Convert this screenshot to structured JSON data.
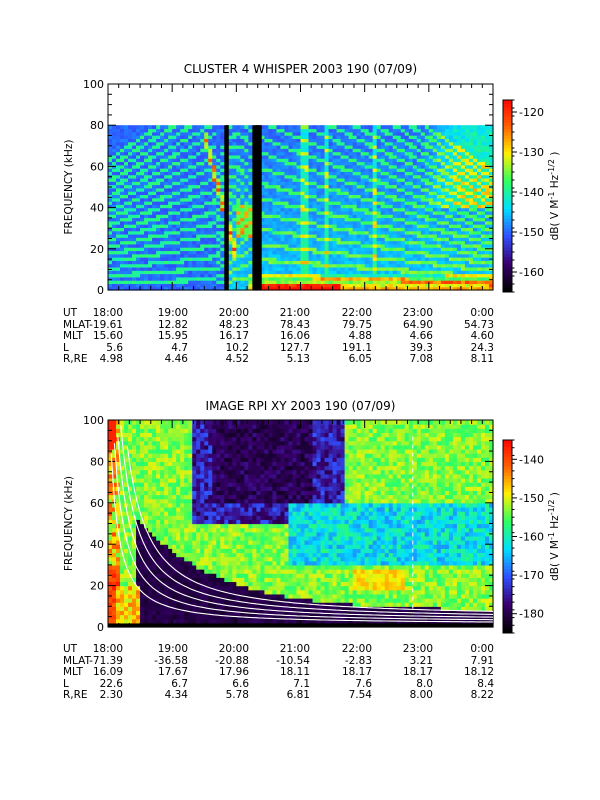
{
  "chart_data": [
    {
      "type": "heatmap",
      "title": "CLUSTER 4 WHISPER 2003 190 (07/09)",
      "ylabel": "FREQUENCY (kHz)",
      "ylim": [
        0,
        100
      ],
      "yticks": [
        "0",
        "20",
        "40",
        "60",
        "80",
        "100"
      ],
      "xlim": [
        "18:00",
        "0:00"
      ],
      "data_max_freq_khz": 80,
      "colorbar": {
        "label": "dB( V M^-1 Hz^-1/2 )",
        "range": [
          -165,
          -117
        ],
        "ticks": [
          "-120",
          "-130",
          "-140",
          "-150",
          "-160"
        ],
        "colors": [
          "#000000",
          "#3a0070",
          "#3050ff",
          "#00e0ff",
          "#30ff60",
          "#fff000",
          "#ff6000",
          "#ff0000"
        ]
      },
      "data_gaps": [
        "19:52",
        "20:20"
      ],
      "ephemeris": {
        "times": [
          "18:00",
          "19:00",
          "20:00",
          "21:00",
          "22:00",
          "23:00",
          "0:00"
        ],
        "rows": [
          {
            "label": "UT",
            "values": [
              "18:00",
              "19:00",
              "20:00",
              "21:00",
              "22:00",
              "23:00",
              "0:00"
            ]
          },
          {
            "label": "MLAT",
            "values": [
              "-19.61",
              "12.82",
              "48.23",
              "78.43",
              "79.75",
              "64.90",
              "54.73"
            ]
          },
          {
            "label": "MLT",
            "values": [
              "15.60",
              "15.95",
              "16.17",
              "16.06",
              "4.88",
              "4.66",
              "4.60"
            ]
          },
          {
            "label": "L",
            "values": [
              "5.6",
              "4.7",
              "10.2",
              "127.7",
              "191.1",
              "39.3",
              "24.3"
            ]
          },
          {
            "label": "R,RE",
            "values": [
              "4.98",
              "4.46",
              "4.52",
              "5.13",
              "6.05",
              "7.08",
              "8.11"
            ]
          }
        ]
      }
    },
    {
      "type": "heatmap",
      "title": "IMAGE RPI XY 2003 190 (07/09)",
      "ylabel": "FREQUENCY (kHz)",
      "ylim": [
        0,
        100
      ],
      "yticks": [
        "0",
        "20",
        "40",
        "60",
        "80",
        "100"
      ],
      "xlim": [
        "18:00",
        "0:00"
      ],
      "colorbar": {
        "label": "dB( V M^-1 Hz^-1/2 )",
        "range": [
          -185,
          -135
        ],
        "ticks": [
          "-140",
          "-150",
          "-160",
          "-170",
          "-180"
        ],
        "colors": [
          "#000000",
          "#3a0070",
          "#3050ff",
          "#00e0ff",
          "#30ff60",
          "#fff000",
          "#ff6000",
          "#ff0000"
        ]
      },
      "ephemeris": {
        "times": [
          "18:00",
          "19:00",
          "20:00",
          "21:00",
          "22:00",
          "23:00",
          "0:00"
        ],
        "rows": [
          {
            "label": "UT",
            "values": [
              "18:00",
              "19:00",
              "20:00",
              "21:00",
              "22:00",
              "23:00",
              "0:00"
            ]
          },
          {
            "label": "MLAT",
            "values": [
              "-71.39",
              "-36.58",
              "-20.88",
              "-10.54",
              "-2.83",
              "3.21",
              "7.91"
            ]
          },
          {
            "label": "MLT",
            "values": [
              "16.09",
              "17.67",
              "17.96",
              "18.11",
              "18.17",
              "18.17",
              "18.12"
            ]
          },
          {
            "label": "L",
            "values": [
              "22.6",
              "6.7",
              "6.6",
              "7.1",
              "7.6",
              "8.0",
              "8.4"
            ]
          },
          {
            "label": "R,RE",
            "values": [
              "2.30",
              "4.34",
              "5.78",
              "6.81",
              "7.54",
              "8.00",
              "8.22"
            ]
          }
        ]
      }
    }
  ]
}
